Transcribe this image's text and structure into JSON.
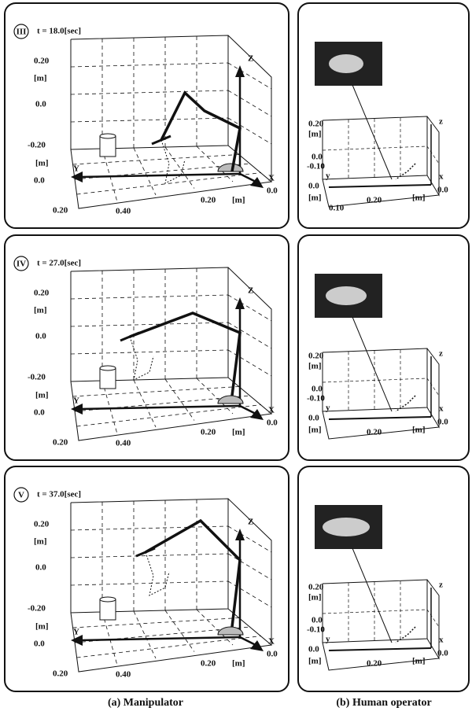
{
  "rows": [
    {
      "numeral": "III",
      "time": "t = 18.0[sec]",
      "manipulator": {
        "z_max": "0.20",
        "z_unit": "[m]",
        "z_mid": "0.0",
        "z_min": "-0.20",
        "y_unit": "[m]",
        "y_axis": "Y",
        "y_zero": "0.0",
        "y_far": "0.20",
        "y_mid": "0.40",
        "x_mid": "0.20",
        "x_unit": "[m]",
        "x_zero": "0.0",
        "x_axis": "X",
        "z_axis": "Z"
      },
      "operator": {
        "z_max": "0.20",
        "z_unit": "[m]",
        "z_mid": "0.0",
        "z_min": "-0.10",
        "y_axis": "y",
        "y_zero": "0.0",
        "y_unit": "[m]",
        "y_far": "0.10",
        "y_mid": "0.20",
        "x_unit": "[m]",
        "x_zero": "0.0",
        "x_axis": "x",
        "z_axis": "z"
      }
    },
    {
      "numeral": "IV",
      "time": "t = 27.0[sec]",
      "manipulator": {
        "z_max": "0.20",
        "z_unit": "[m]",
        "z_mid": "0.0",
        "z_min": "-0.20",
        "y_unit": "[m]",
        "y_axis": "Y",
        "y_zero": "0.0",
        "y_far": "0.20",
        "y_mid": "0.40",
        "x_mid": "0.20",
        "x_unit": "[m]",
        "x_zero": "0.0",
        "x_axis": "X",
        "z_axis": "Z"
      },
      "operator": {
        "z_max": "0.20",
        "z_unit": "[m]",
        "z_mid": "0.0",
        "z_min": "-0.10",
        "y_axis": "y",
        "y_zero": "0.0",
        "y_unit": "[m]",
        "y_mid": "0.20",
        "x_unit": "[m]",
        "x_zero": "0.0",
        "x_axis": "x",
        "z_axis": "z"
      }
    },
    {
      "numeral": "V",
      "time": "t = 37.0[sec]",
      "manipulator": {
        "z_max": "0.20",
        "z_unit": "[m]",
        "z_mid": "0.0",
        "z_min": "-0.20",
        "y_unit": "[m]",
        "y_axis": "Y",
        "y_zero": "0.0",
        "y_far": "0.20",
        "y_mid": "0.40",
        "x_mid": "0.20",
        "x_unit": "[m]",
        "x_zero": "0.0",
        "x_axis": "X",
        "z_axis": "Z"
      },
      "operator": {
        "z_max": "0.20",
        "z_unit": "[m]",
        "z_mid": "0.0",
        "z_min": "-0.10",
        "y_axis": "y",
        "y_zero": "0.0",
        "y_unit": "[m]",
        "y_mid": "0.20",
        "x_unit": "[m]",
        "x_zero": "0.0",
        "x_axis": "x",
        "z_axis": "z"
      }
    }
  ],
  "captions": {
    "left": "(a) Manipulator",
    "right": "(b) Human operator"
  }
}
